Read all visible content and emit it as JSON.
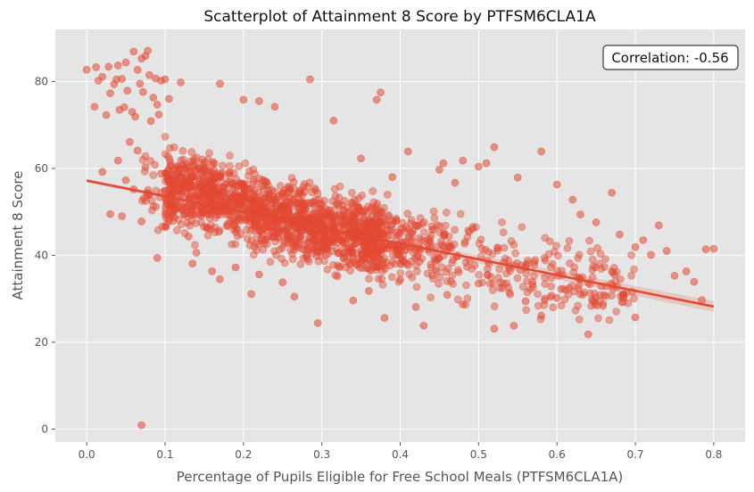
{
  "chart_data": {
    "type": "scatter",
    "title": "Scatterplot of Attainment 8 Score by PTFSM6CLA1A",
    "xlabel": "Percentage of Pupils Eligible for Free School Meals (PTFSM6CLA1A)",
    "ylabel": "Attainment 8 Score",
    "xlim": [
      -0.04,
      0.84
    ],
    "ylim": [
      -3,
      92
    ],
    "xticks": [
      0.0,
      0.1,
      0.2,
      0.3,
      0.4,
      0.5,
      0.6,
      0.7,
      0.8
    ],
    "xtick_labels": [
      "0.0",
      "0.1",
      "0.2",
      "0.3",
      "0.4",
      "0.5",
      "0.6",
      "0.7",
      "0.8"
    ],
    "yticks": [
      0,
      20,
      40,
      60,
      80
    ],
    "ytick_labels": [
      "0",
      "20",
      "40",
      "60",
      "80"
    ],
    "grid": true,
    "annotation": {
      "text": "Correlation: -0.56",
      "placement": "top-right"
    },
    "regression_line": {
      "x": [
        0.0,
        0.8
      ],
      "y": [
        57.2,
        28.2
      ]
    },
    "colors": {
      "points": "#E24A33",
      "line": "#E24A33",
      "background": "#E5E5E5",
      "grid": "#FFFFFF"
    },
    "points": [
      [
        0.0,
        82.7
      ],
      [
        0.01,
        74.2
      ],
      [
        0.012,
        83.3
      ],
      [
        0.015,
        80.2
      ],
      [
        0.02,
        81.1
      ],
      [
        0.025,
        72.3
      ],
      [
        0.028,
        83.4
      ],
      [
        0.03,
        77.3
      ],
      [
        0.035,
        79.4
      ],
      [
        0.038,
        80.5
      ],
      [
        0.04,
        83.7
      ],
      [
        0.042,
        73.5
      ],
      [
        0.045,
        80.6
      ],
      [
        0.048,
        74.1
      ],
      [
        0.05,
        84.4
      ],
      [
        0.052,
        77.9
      ],
      [
        0.055,
        66.1
      ],
      [
        0.058,
        73.0
      ],
      [
        0.06,
        86.9
      ],
      [
        0.062,
        71.9
      ],
      [
        0.065,
        82.7
      ],
      [
        0.068,
        79.5
      ],
      [
        0.07,
        85.3
      ],
      [
        0.072,
        77.6
      ],
      [
        0.075,
        85.9
      ],
      [
        0.078,
        87.1
      ],
      [
        0.08,
        81.5
      ],
      [
        0.082,
        70.9
      ],
      [
        0.085,
        76.3
      ],
      [
        0.088,
        80.7
      ],
      [
        0.09,
        74.7
      ],
      [
        0.092,
        72.4
      ],
      [
        0.095,
        80.2
      ],
      [
        0.1,
        80.5
      ],
      [
        0.105,
        76.0
      ],
      [
        0.12,
        79.8
      ],
      [
        0.17,
        79.5
      ],
      [
        0.2,
        75.8
      ],
      [
        0.22,
        75.5
      ],
      [
        0.24,
        74.2
      ],
      [
        0.285,
        80.5
      ],
      [
        0.315,
        71.0
      ],
      [
        0.37,
        75.8
      ],
      [
        0.375,
        77.5
      ],
      [
        0.07,
        0.9
      ],
      [
        0.02,
        59.2
      ],
      [
        0.03,
        49.5
      ],
      [
        0.04,
        61.8
      ],
      [
        0.045,
        49.0
      ],
      [
        0.05,
        57.3
      ],
      [
        0.06,
        55.2
      ],
      [
        0.065,
        64.1
      ],
      [
        0.07,
        47.8
      ],
      [
        0.075,
        60.3
      ],
      [
        0.08,
        53.9
      ],
      [
        0.09,
        39.4
      ],
      [
        0.095,
        58.8
      ],
      [
        0.13,
        44.3
      ],
      [
        0.135,
        38.1
      ],
      [
        0.14,
        40.6
      ],
      [
        0.16,
        36.3
      ],
      [
        0.17,
        34.5
      ],
      [
        0.19,
        37.2
      ],
      [
        0.21,
        31.1
      ],
      [
        0.22,
        35.6
      ],
      [
        0.25,
        33.8
      ],
      [
        0.265,
        30.5
      ],
      [
        0.28,
        39.7
      ],
      [
        0.295,
        24.4
      ],
      [
        0.32,
        35.2
      ],
      [
        0.34,
        29.6
      ],
      [
        0.36,
        31.8
      ],
      [
        0.38,
        25.6
      ],
      [
        0.4,
        34.4
      ],
      [
        0.42,
        28.1
      ],
      [
        0.43,
        23.8
      ],
      [
        0.46,
        30.9
      ],
      [
        0.48,
        28.7
      ],
      [
        0.5,
        33.5
      ],
      [
        0.52,
        23.1
      ],
      [
        0.545,
        23.8
      ],
      [
        0.56,
        29.4
      ],
      [
        0.58,
        26.1
      ],
      [
        0.6,
        30.2
      ],
      [
        0.64,
        21.8
      ],
      [
        0.66,
        30.8
      ],
      [
        0.7,
        25.7
      ],
      [
        0.7,
        41.9
      ],
      [
        0.71,
        43.5
      ],
      [
        0.72,
        40.1
      ],
      [
        0.73,
        46.9
      ],
      [
        0.74,
        41.0
      ],
      [
        0.75,
        35.3
      ],
      [
        0.765,
        36.3
      ],
      [
        0.775,
        33.9
      ],
      [
        0.785,
        29.7
      ],
      [
        0.79,
        41.4
      ],
      [
        0.8,
        41.5
      ],
      [
        0.35,
        62.3
      ],
      [
        0.39,
        58.0
      ],
      [
        0.41,
        63.9
      ],
      [
        0.45,
        59.7
      ],
      [
        0.455,
        61.2
      ],
      [
        0.47,
        56.7
      ],
      [
        0.48,
        61.8
      ],
      [
        0.5,
        60.4
      ],
      [
        0.51,
        61.2
      ],
      [
        0.52,
        64.9
      ],
      [
        0.55,
        57.9
      ],
      [
        0.58,
        63.9
      ],
      [
        0.6,
        56.3
      ],
      [
        0.62,
        52.8
      ],
      [
        0.63,
        49.4
      ],
      [
        0.65,
        47.6
      ],
      [
        0.67,
        54.4
      ],
      [
        0.68,
        44.8
      ]
    ]
  }
}
